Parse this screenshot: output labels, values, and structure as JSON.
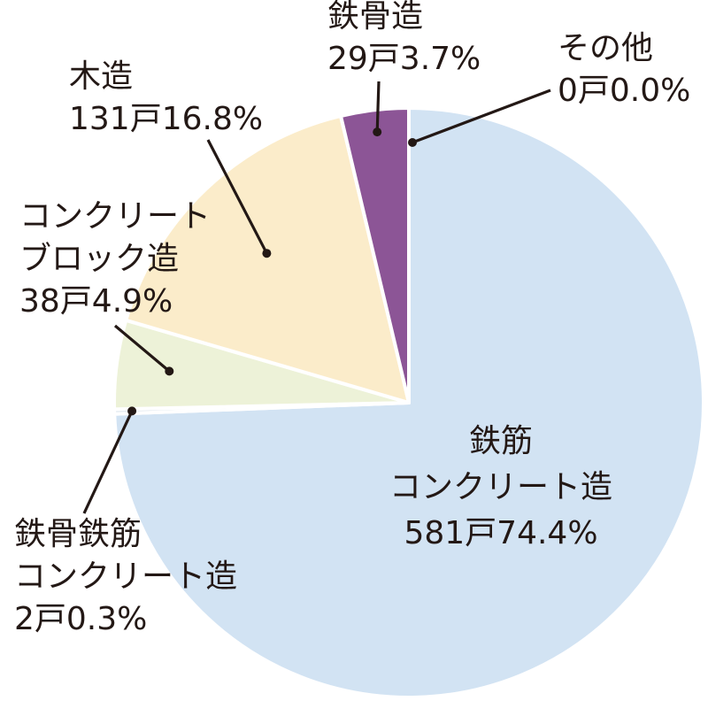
{
  "chart_data": {
    "type": "pie",
    "start_angle_deg": 0,
    "direction": "clockwise",
    "slices": [
      {
        "name": "鉄筋コンクリート造",
        "label_lines": [
          "鉄筋",
          "コンクリート造",
          "581戸74.4%"
        ],
        "count": 581,
        "percent": 74.4,
        "color": "#d2e3f3"
      },
      {
        "name": "鉄骨鉄筋コンクリート造",
        "label_lines": [
          "鉄骨鉄筋",
          "コンクリート造",
          "2戸0.3%"
        ],
        "count": 2,
        "percent": 0.3,
        "color": "#dfe7ee"
      },
      {
        "name": "コンクリートブロック造",
        "label_lines": [
          "コンクリート",
          "ブロック造",
          "38戸4.9%"
        ],
        "count": 38,
        "percent": 4.9,
        "color": "#edf2d8"
      },
      {
        "name": "木造",
        "label_lines": [
          "木造",
          "131戸16.8%"
        ],
        "count": 131,
        "percent": 16.8,
        "color": "#fbecca"
      },
      {
        "name": "鉄骨造",
        "label_lines": [
          "鉄骨造",
          "29戸3.7%"
        ],
        "count": 29,
        "percent": 3.7,
        "color": "#8c5596"
      },
      {
        "name": "その他",
        "label_lines": [
          "その他",
          "0戸0.0%"
        ],
        "count": 0,
        "percent": 0.0,
        "color": "#8c5596"
      }
    ]
  }
}
